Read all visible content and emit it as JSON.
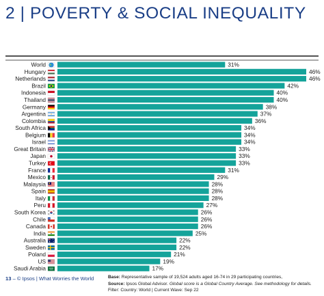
{
  "title": "2 | POVERTY & SOCIAL INEQUALITY",
  "footer": {
    "page_number": "13",
    "brand": "– © Ipsos | What Worries the World",
    "base_label": "Base:",
    "base_text": " Representative sample of 19,524 adults aged 16-74 in 29 participating countries,",
    "source_label": "Source:",
    "source_text": " Ipsos Global Advisor. ",
    "source_note": "Global score is a Global Country Average. See methodology for details.",
    "filter_text": "Filter: Country: World | Current Wave: Sep 22"
  },
  "colors": {
    "bar": "#14a39a",
    "title": "#1a3e86"
  },
  "chart_data": {
    "type": "bar",
    "orientation": "horizontal",
    "title": "",
    "xlabel": "",
    "ylabel": "",
    "xlim": [
      0,
      46
    ],
    "grid": false,
    "categories": [
      "World",
      "Hungary",
      "Netherlands",
      "Brazil",
      "Indonesia",
      "Thailand",
      "Germany",
      "Argentina",
      "Colombia",
      "South Africa",
      "Belgium",
      "Israel",
      "Great Britain",
      "Japan",
      "Turkey",
      "France",
      "Mexico",
      "Malaysia",
      "Spain",
      "Italy",
      "Peru",
      "South Korea",
      "Chile",
      "Canada",
      "India",
      "Australia",
      "Sweden",
      "Poland",
      "US",
      "Saudi Arabia"
    ],
    "values": [
      31,
      46,
      46,
      42,
      40,
      40,
      38,
      37,
      36,
      34,
      34,
      34,
      33,
      33,
      33,
      31,
      29,
      28,
      28,
      28,
      27,
      26,
      26,
      26,
      25,
      22,
      22,
      21,
      19,
      17
    ],
    "value_labels": [
      "31%",
      "46%",
      "46%",
      "42%",
      "40%",
      "40%",
      "38%",
      "37%",
      "36%",
      "34%",
      "34%",
      "34%",
      "33%",
      "33%",
      "33%",
      "31%",
      "29%",
      "28%",
      "28%",
      "28%",
      "27%",
      "26%",
      "26%",
      "26%",
      "25%",
      "22%",
      "22%",
      "21%",
      "19%",
      "17%"
    ],
    "flag_icons": [
      "globe-icon",
      "flag-hungary-icon",
      "flag-netherlands-icon",
      "flag-brazil-icon",
      "flag-indonesia-icon",
      "flag-thailand-icon",
      "flag-germany-icon",
      "flag-argentina-icon",
      "flag-colombia-icon",
      "flag-south-africa-icon",
      "flag-belgium-icon",
      "flag-israel-icon",
      "flag-great-britain-icon",
      "flag-japan-icon",
      "flag-turkey-icon",
      "flag-france-icon",
      "flag-mexico-icon",
      "flag-malaysia-icon",
      "flag-spain-icon",
      "flag-italy-icon",
      "flag-peru-icon",
      "flag-south-korea-icon",
      "flag-chile-icon",
      "flag-canada-icon",
      "flag-india-icon",
      "flag-australia-icon",
      "flag-sweden-icon",
      "flag-poland-icon",
      "flag-us-icon",
      "flag-saudi-arabia-icon"
    ]
  }
}
